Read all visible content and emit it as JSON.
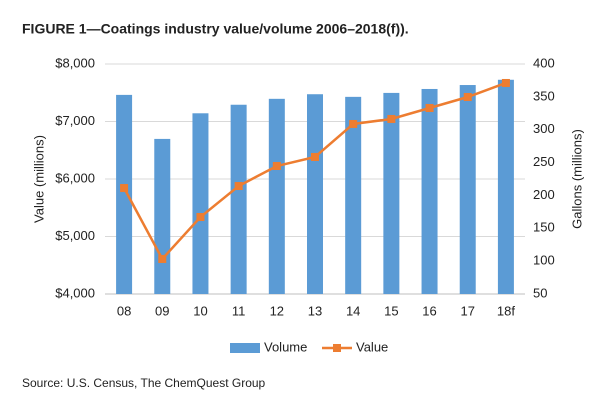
{
  "chart_data": {
    "type": "bar",
    "title": "FIGURE 1—Coatings industry value/volume 2006–2018(f)).",
    "source": "Source: U.S. Census, The ChemQuest Group",
    "y_label": "Value (millions)",
    "y2_label": "Gallons (millions)",
    "categories": [
      "08",
      "09",
      "10",
      "11",
      "12",
      "13",
      "14",
      "15",
      "16",
      "17",
      "18f"
    ],
    "series": [
      {
        "name": "Volume",
        "type": "bar",
        "axis": "y2",
        "color": "#5b9bd5",
        "values": [
          353,
          286,
          325,
          338,
          347,
          354,
          350,
          356,
          362,
          368,
          376
        ]
      },
      {
        "name": "Value",
        "type": "line",
        "axis": "y",
        "color": "#ed7d31",
        "values": [
          5843,
          4609,
          5339,
          5878,
          6226,
          6383,
          6957,
          7044,
          7235,
          7426,
          7670
        ]
      }
    ],
    "ylim": [
      4000,
      8000
    ],
    "yticks": [
      {
        "value": 4000,
        "label": "$4,000"
      },
      {
        "value": 5000,
        "label": "$5,000"
      },
      {
        "value": 6000,
        "label": "$6,000"
      },
      {
        "value": 7000,
        "label": "$7,000"
      },
      {
        "value": 8000,
        "label": "$8,000"
      }
    ],
    "y2lim": [
      50,
      400
    ],
    "y2ticks": [
      50,
      100,
      150,
      200,
      250,
      300,
      350,
      400
    ],
    "grid": true,
    "legend": "bottom"
  }
}
